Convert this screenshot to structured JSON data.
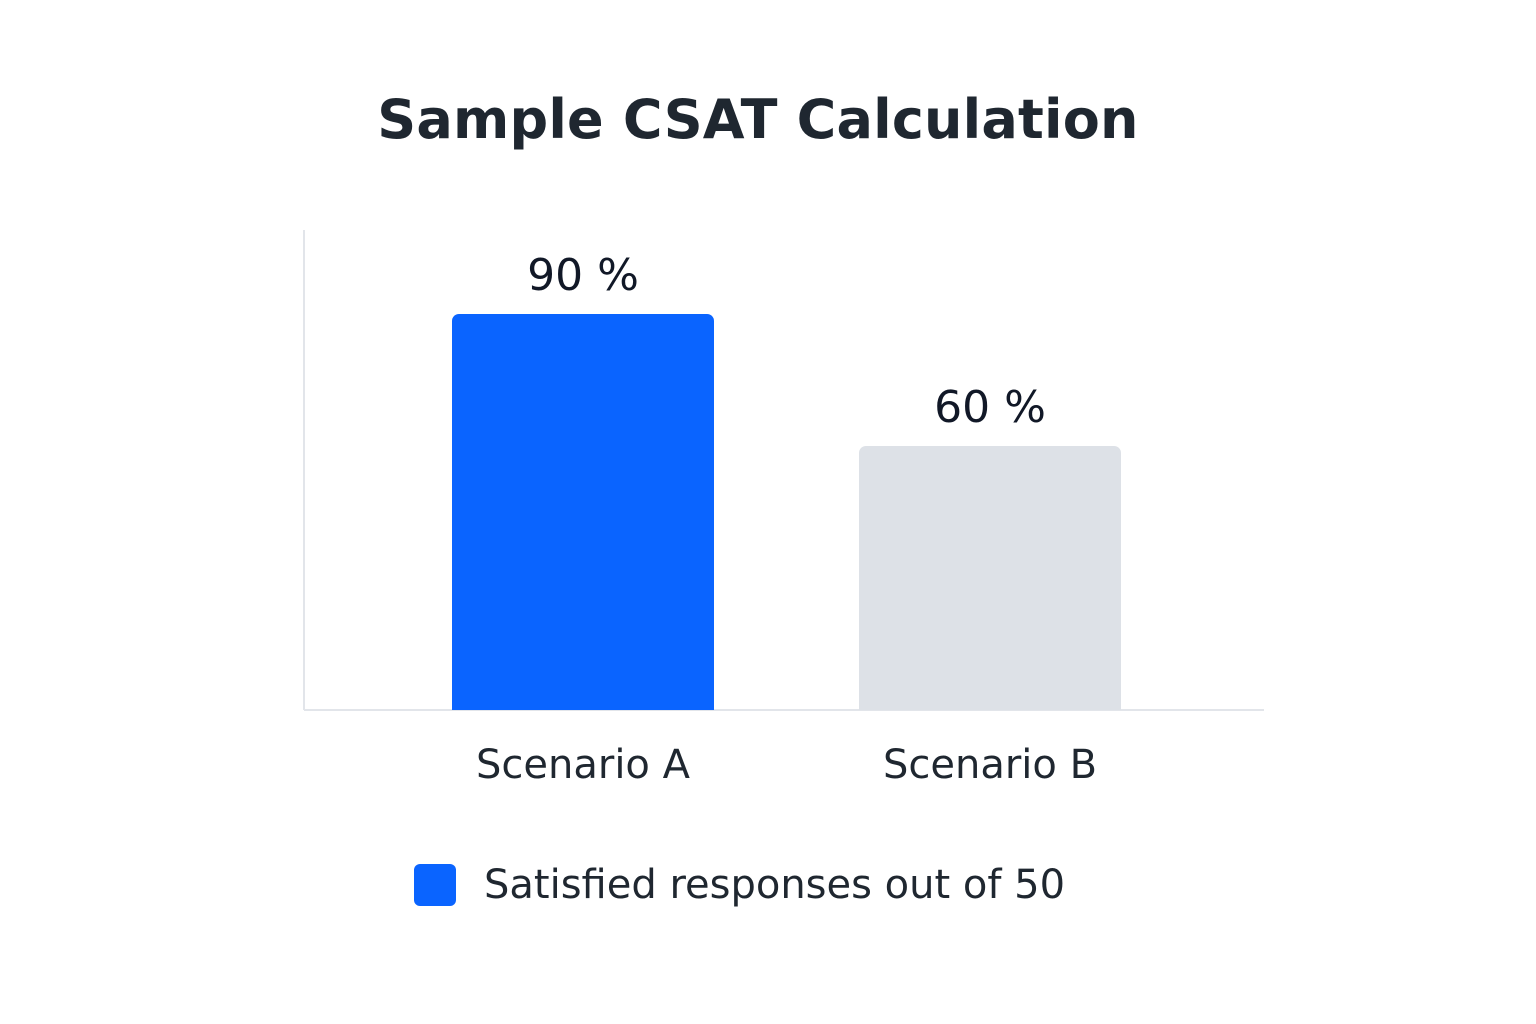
{
  "chart_data": {
    "type": "bar",
    "title": "Sample CSAT Calculation",
    "categories": [
      "Scenario A",
      "Scenario B"
    ],
    "values": [
      90,
      60
    ],
    "value_labels": [
      "90 %",
      "60 %"
    ],
    "unit": "%",
    "ylim": [
      0,
      100
    ],
    "xlabel": "",
    "ylabel": "",
    "grid": false,
    "bar_colors": [
      "#0a64ff",
      "#dde1e7"
    ],
    "legend": {
      "position": "bottom",
      "entries": [
        {
          "label": "Satisfied responses out of 50",
          "color": "#0a64ff"
        }
      ]
    }
  }
}
